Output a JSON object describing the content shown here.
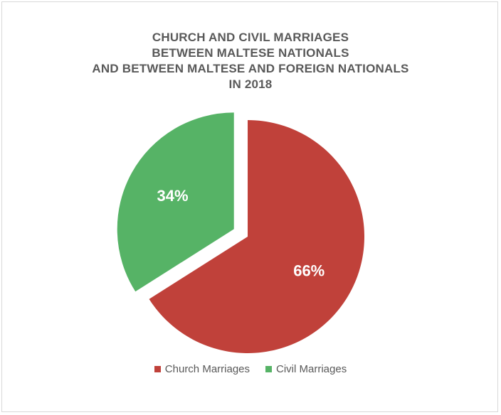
{
  "chart_data": {
    "type": "pie",
    "title_lines": [
      "CHURCH AND CIVIL MARRIAGES",
      "BETWEEN MALTESE NATIONALS",
      "AND BETWEEN MALTESE AND FOREIGN NATIONALS",
      "IN 2018"
    ],
    "slices": [
      {
        "name": "Church Marriages",
        "value": 66,
        "label": "66%",
        "color": "#c0413a",
        "exploded": false
      },
      {
        "name": "Civil Marriages",
        "value": 34,
        "label": "34%",
        "color": "#56b366",
        "exploded": true
      }
    ],
    "legend_position": "bottom"
  }
}
